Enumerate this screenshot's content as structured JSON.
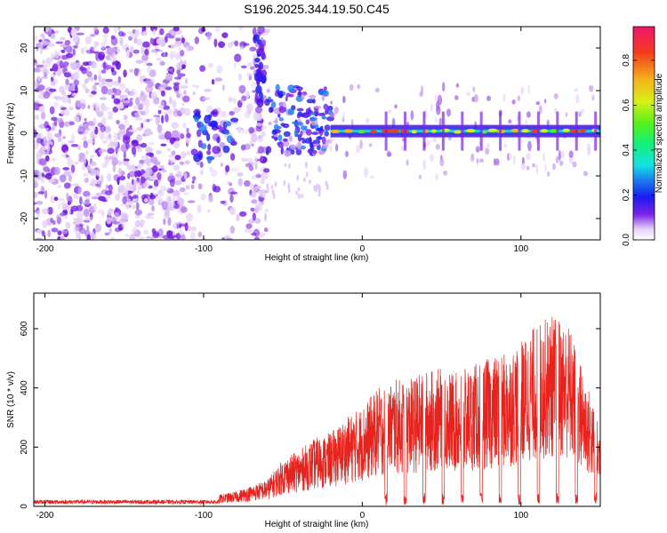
{
  "title": "S196.2025.344.19.50.C45",
  "chart_data": [
    {
      "type": "heatmap",
      "xlabel": "Height of straight line (km)",
      "ylabel": "Frequency (Hz)",
      "xlim": [
        -207,
        150
      ],
      "ylim": [
        -25,
        25
      ],
      "xticks": [
        -200,
        -100,
        0,
        100
      ],
      "yticks": [
        -20,
        -10,
        0,
        10,
        20
      ],
      "colorbar": {
        "label": "Normalized spectral amplitude",
        "range": [
          0,
          0.95
        ],
        "ticks": [
          0.0,
          0.2,
          0.4,
          0.6,
          0.8
        ]
      },
      "description_regions": [
        {
          "x_range": [
            -207,
            -60
          ],
          "level": 0.1,
          "note": "diffuse noise"
        },
        {
          "x_range": [
            -60,
            -20
          ],
          "freq_center": 3,
          "level": 0.25
        },
        {
          "x_range": [
            -20,
            150
          ],
          "freq_center": 0.5,
          "level": 0.85,
          "note": "strong narrowband signal"
        }
      ]
    },
    {
      "type": "line",
      "xlabel": "Height of straight line (km)",
      "ylabel": "SNR (10 * v/v)",
      "xlim": [
        -207,
        150
      ],
      "ylim": [
        0,
        720
      ],
      "xticks": [
        -200,
        -100,
        0,
        100
      ],
      "yticks": [
        0,
        200,
        400,
        600
      ],
      "series": [
        {
          "name": "SNR",
          "color": "#e8231e",
          "x": [
            -207,
            -180,
            -150,
            -120,
            -100,
            -80,
            -60,
            -50,
            -40,
            -30,
            -20,
            -10,
            0,
            10,
            20,
            30,
            40,
            50,
            60,
            70,
            80,
            90,
            100,
            110,
            120,
            130,
            140,
            150
          ],
          "envelope": [
            25,
            25,
            25,
            25,
            30,
            50,
            90,
            160,
            190,
            230,
            250,
            300,
            340,
            400,
            430,
            430,
            460,
            470,
            450,
            480,
            500,
            520,
            560,
            620,
            650,
            620,
            450,
            260
          ]
        }
      ],
      "dropout_x": [
        15,
        27,
        39,
        51,
        63,
        75,
        87,
        99,
        111,
        123,
        135,
        147
      ]
    }
  ]
}
